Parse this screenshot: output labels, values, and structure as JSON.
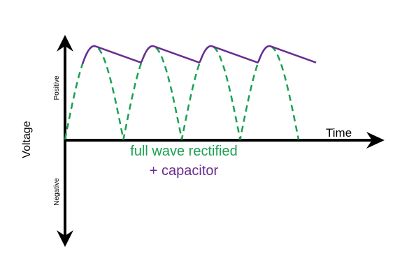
{
  "axes": {
    "x_label": "Time",
    "y_label": "Voltage",
    "positive_label": "Positive",
    "negative_label": "Negative"
  },
  "legend": {
    "line1": "full wave rectified",
    "line2": "+ capacitor"
  },
  "colors": {
    "axis": "#000000",
    "rectified": "#1aa152",
    "capacitor": "#6a2c91"
  },
  "waveform": {
    "rectified_style": "dashed",
    "capacitor_style": "solid",
    "half_cycles": 4
  }
}
